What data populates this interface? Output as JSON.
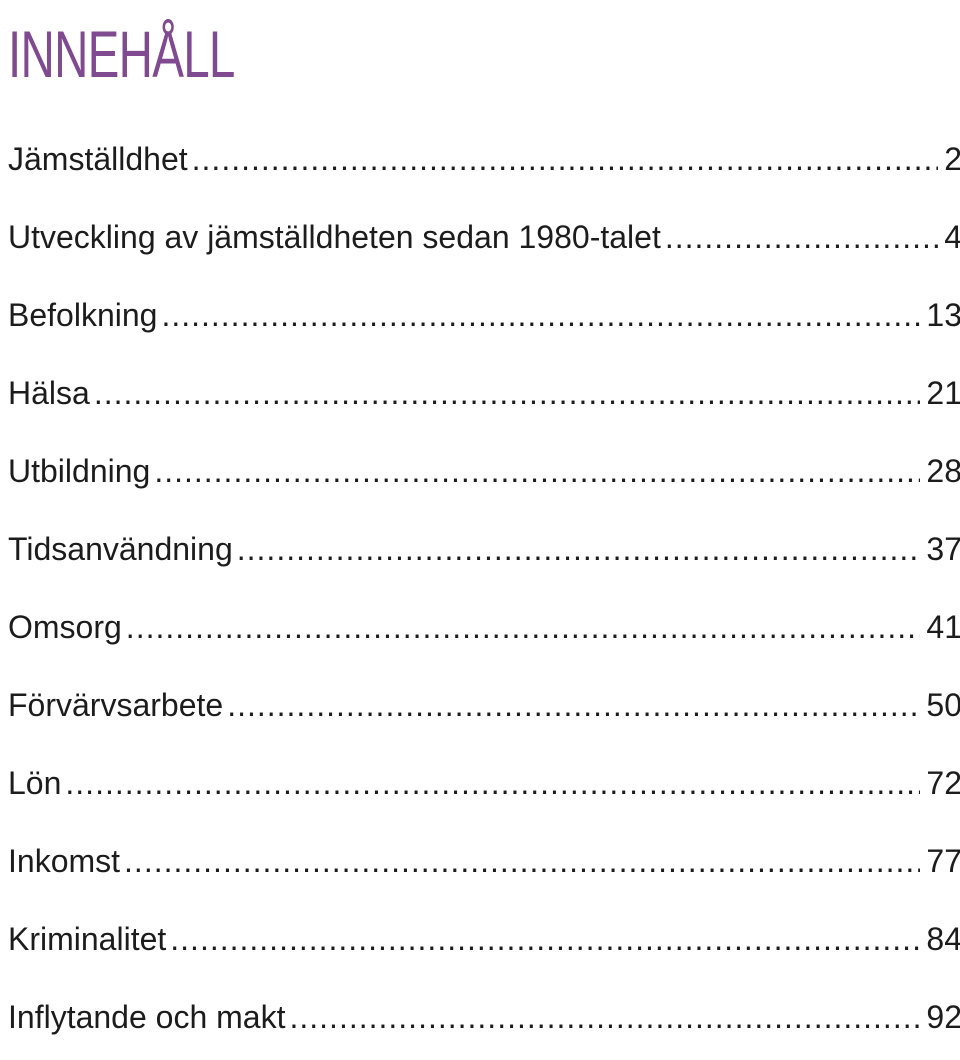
{
  "title": "INNEHÅLL",
  "accent_color": "#7f4a8f",
  "entries": [
    {
      "title": "Jämställdhet",
      "page": "2"
    },
    {
      "title": "Utveckling av jämställdheten sedan 1980-talet",
      "page": "4"
    },
    {
      "title": "Befolkning",
      "page": "13"
    },
    {
      "title": "Hälsa",
      "page": "21"
    },
    {
      "title": "Utbildning",
      "page": "28"
    },
    {
      "title": "Tidsanvändning",
      "page": "37"
    },
    {
      "title": "Omsorg",
      "page": "41"
    },
    {
      "title": "Förvärvsarbete",
      "page": "50"
    },
    {
      "title": "Lön",
      "page": "72"
    },
    {
      "title": "Inkomst",
      "page": "77"
    },
    {
      "title": "Kriminalitet",
      "page": "84"
    },
    {
      "title": "Inflytande och makt",
      "page": "92"
    }
  ]
}
